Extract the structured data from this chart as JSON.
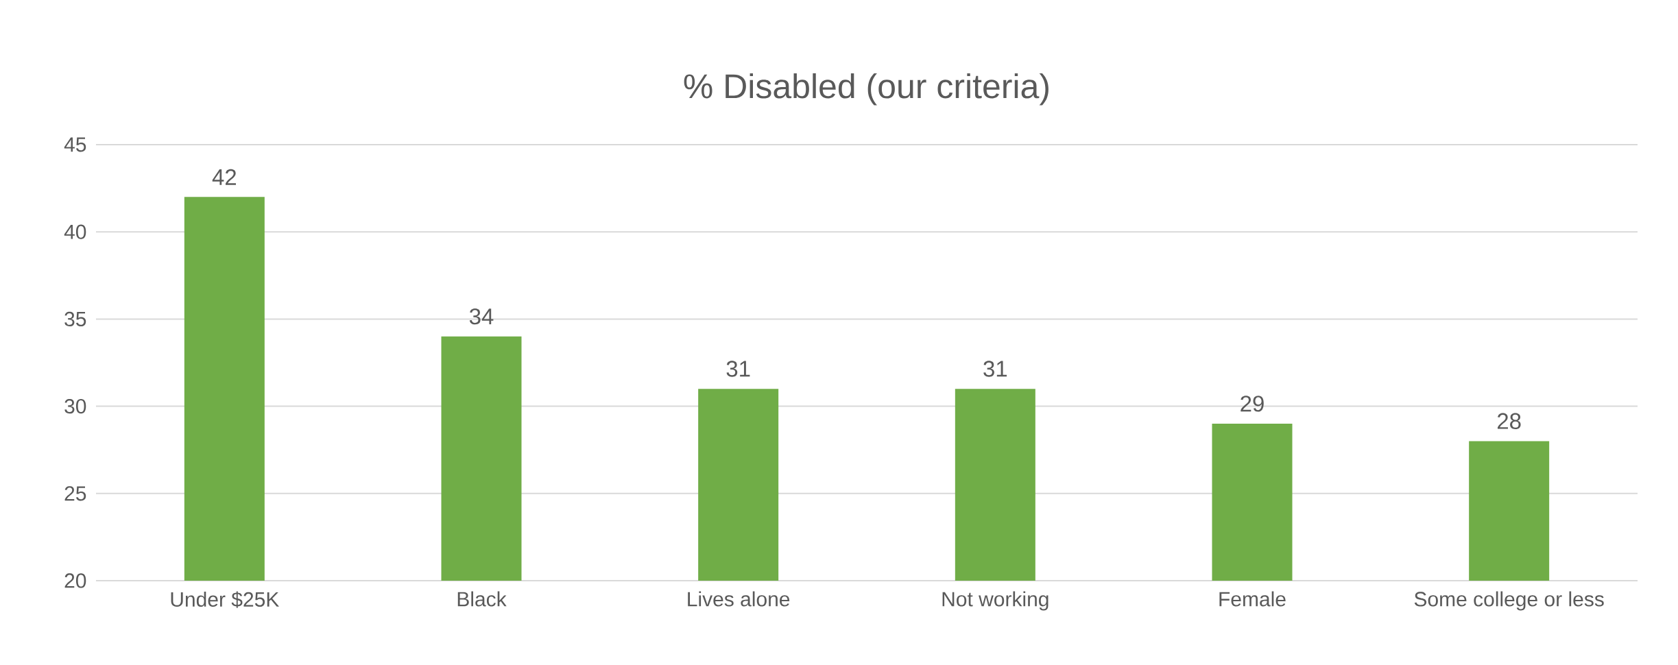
{
  "chart_data": {
    "type": "bar",
    "title": "% Disabled (our criteria)",
    "categories": [
      "Under $25K",
      "Black",
      "Lives alone",
      "Not working",
      "Female",
      "Some college or less"
    ],
    "values": [
      42,
      34,
      31,
      31,
      29,
      28
    ],
    "color": "#70ad47",
    "ylim": [
      20,
      45
    ],
    "yticks": [
      20,
      25,
      30,
      35,
      40,
      45
    ],
    "grid": "y",
    "data_labels": true
  }
}
